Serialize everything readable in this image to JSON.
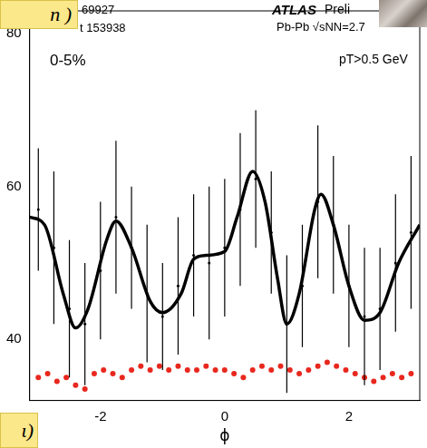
{
  "chart_data": {
    "type": "line",
    "x_label": "ϕ",
    "xlim": [
      -3.14,
      3.14
    ],
    "xticks": [
      -2,
      0,
      2
    ],
    "ylim": [
      32,
      83
    ],
    "yticks": [
      40,
      60,
      80
    ],
    "grid": false,
    "annotations": [
      "n )",
      "69927",
      "t 153938",
      "ATLAS",
      "Preli",
      "Pb-Pb √sNN=2.7",
      "0-5%",
      "pT>0.5 GeV",
      "ι)"
    ],
    "series": [
      {
        "type": "line",
        "color": "#000000",
        "line_style": "solid",
        "x": [
          -3.14,
          -2.9,
          -2.6,
          -2.4,
          -2.2,
          -1.9,
          -1.75,
          -1.5,
          -1.2,
          -1.0,
          -0.7,
          -0.5,
          -0.3,
          0,
          0.2,
          0.45,
          0.65,
          0.85,
          1.0,
          1.2,
          1.45,
          1.55,
          1.75,
          2.0,
          2.25,
          2.5,
          2.8,
          3.14
        ],
        "values": [
          56,
          55,
          46,
          41.5,
          44,
          53,
          55.5,
          52,
          45,
          43.5,
          46,
          50.5,
          51,
          51.5,
          56,
          62,
          58,
          48,
          42,
          46,
          57,
          59,
          55,
          47,
          42.5,
          43.5,
          50,
          55
        ]
      },
      {
        "type": "scatter",
        "color": "#000000",
        "marker": "dot",
        "x": [
          -3.0,
          -2.75,
          -2.5,
          -2.25,
          -2.0,
          -1.75,
          -1.5,
          -1.25,
          -1.0,
          -0.75,
          -0.5,
          -0.25,
          0,
          0.25,
          0.5,
          0.75,
          1.0,
          1.25,
          1.5,
          1.75,
          2.0,
          2.25,
          2.5,
          2.75,
          3.0
        ],
        "values": [
          57,
          52,
          44,
          42,
          49,
          56,
          52,
          46,
          43,
          47,
          51,
          50,
          52,
          57,
          61,
          54,
          42,
          47,
          58,
          55,
          47,
          43,
          44,
          50,
          54
        ],
        "errors": [
          8,
          10,
          9,
          8,
          9,
          10,
          8,
          9,
          7,
          9,
          8,
          10,
          9,
          10,
          9,
          8,
          9,
          8,
          10,
          9,
          8,
          9,
          8,
          9,
          10
        ]
      },
      {
        "type": "scatter",
        "color": "#e8281e",
        "marker": "circle",
        "x": [
          -3.0,
          -2.85,
          -2.7,
          -2.55,
          -2.4,
          -2.25,
          -2.1,
          -1.95,
          -1.8,
          -1.65,
          -1.5,
          -1.35,
          -1.2,
          -1.05,
          -0.9,
          -0.75,
          -0.6,
          -0.45,
          -0.3,
          -0.15,
          0,
          0.15,
          0.3,
          0.45,
          0.6,
          0.75,
          0.9,
          1.05,
          1.2,
          1.35,
          1.5,
          1.65,
          1.8,
          1.95,
          2.1,
          2.25,
          2.4,
          2.55,
          2.7,
          2.85,
          3.0
        ],
        "values": [
          35,
          35.5,
          34.5,
          35,
          34,
          33.5,
          35.5,
          36,
          35.5,
          35,
          36,
          36.5,
          36,
          36.5,
          36,
          36.5,
          36,
          36,
          36.5,
          36,
          36,
          35.5,
          35,
          36,
          36.5,
          36,
          36.5,
          36,
          35.5,
          36,
          36.5,
          37,
          36.5,
          36,
          35.5,
          35,
          34.5,
          35,
          35.5,
          35,
          35.5
        ]
      }
    ]
  }
}
